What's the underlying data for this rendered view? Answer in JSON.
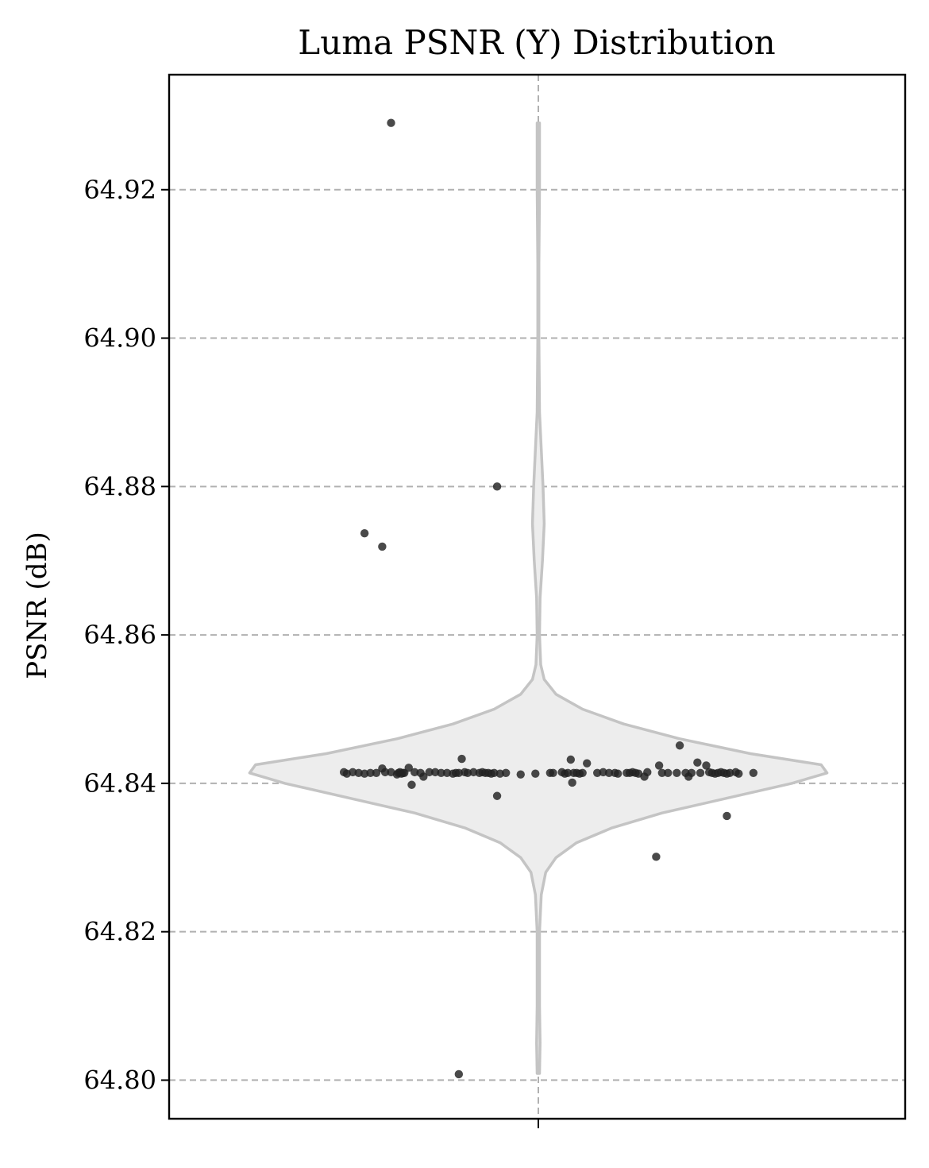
{
  "chart_data": {
    "type": "violin",
    "title": "Luma PSNR (Y) Distribution",
    "xlabel": "",
    "ylabel": "PSNR (dB)",
    "ylim": [
      64.7948,
      64.9355
    ],
    "yticks": [
      64.8,
      64.82,
      64.84,
      64.86,
      64.88,
      64.9,
      64.92
    ],
    "ytick_labels": [
      "64.80",
      "64.82",
      "64.84",
      "64.86",
      "64.88",
      "64.90",
      "64.92"
    ],
    "grid": true,
    "violin": {
      "min": 64.8009,
      "max": 64.929,
      "profile": [
        [
          64.8009,
          0.004
        ],
        [
          64.805,
          0.006
        ],
        [
          64.81,
          0.004
        ],
        [
          64.815,
          0.004
        ],
        [
          64.82,
          0.004
        ],
        [
          64.825,
          0.01
        ],
        [
          64.828,
          0.025
        ],
        [
          64.83,
          0.06
        ],
        [
          64.832,
          0.13
        ],
        [
          64.834,
          0.25
        ],
        [
          64.836,
          0.42
        ],
        [
          64.838,
          0.64
        ],
        [
          64.84,
          0.86
        ],
        [
          64.8414,
          0.98
        ],
        [
          64.8425,
          0.96
        ],
        [
          64.844,
          0.72
        ],
        [
          64.846,
          0.48
        ],
        [
          64.848,
          0.29
        ],
        [
          64.85,
          0.15
        ],
        [
          64.852,
          0.06
        ],
        [
          64.854,
          0.02
        ],
        [
          64.856,
          0.008
        ],
        [
          64.86,
          0.004
        ],
        [
          64.865,
          0.006
        ],
        [
          64.87,
          0.014
        ],
        [
          64.875,
          0.02
        ],
        [
          64.88,
          0.016
        ],
        [
          64.885,
          0.01
        ],
        [
          64.89,
          0.004
        ],
        [
          64.9,
          0.002
        ],
        [
          64.91,
          0.002
        ],
        [
          64.92,
          0.004
        ],
        [
          64.929,
          0.004
        ]
      ]
    },
    "points": [
      [
        -0.66,
        64.8415
      ],
      [
        -0.65,
        64.8413
      ],
      [
        -0.63,
        64.8415
      ],
      [
        -0.61,
        64.8414
      ],
      [
        -0.59,
        64.8413
      ],
      [
        -0.57,
        64.8414
      ],
      [
        -0.55,
        64.8414
      ],
      [
        -0.53,
        64.842
      ],
      [
        -0.52,
        64.8415
      ],
      [
        -0.5,
        64.8415
      ],
      [
        -0.48,
        64.8412
      ],
      [
        -0.475,
        64.8414
      ],
      [
        -0.47,
        64.8415
      ],
      [
        -0.465,
        64.8413
      ],
      [
        -0.46,
        64.8414
      ],
      [
        -0.455,
        64.8414
      ],
      [
        -0.44,
        64.8421
      ],
      [
        -0.43,
        64.8398
      ],
      [
        -0.42,
        64.8415
      ],
      [
        -0.4,
        64.8414
      ],
      [
        -0.39,
        64.8409
      ],
      [
        -0.37,
        64.8415
      ],
      [
        -0.35,
        64.8415
      ],
      [
        -0.33,
        64.8414
      ],
      [
        -0.31,
        64.8414
      ],
      [
        -0.29,
        64.8413
      ],
      [
        -0.28,
        64.8414
      ],
      [
        -0.27,
        64.8414
      ],
      [
        -0.26,
        64.8433
      ],
      [
        -0.25,
        64.8415
      ],
      [
        -0.24,
        64.8414
      ],
      [
        -0.22,
        64.8415
      ],
      [
        -0.2,
        64.8414
      ],
      [
        -0.19,
        64.8415
      ],
      [
        -0.18,
        64.8414
      ],
      [
        -0.17,
        64.8414
      ],
      [
        -0.16,
        64.8413
      ],
      [
        -0.15,
        64.8414
      ],
      [
        -0.14,
        64.8383
      ],
      [
        -0.13,
        64.8413
      ],
      [
        -0.11,
        64.8414
      ],
      [
        -0.06,
        64.8412
      ],
      [
        -0.01,
        64.8413
      ],
      [
        0.04,
        64.8414
      ],
      [
        0.05,
        64.8414
      ],
      [
        0.08,
        64.8415
      ],
      [
        0.09,
        64.8413
      ],
      [
        0.1,
        64.8414
      ],
      [
        0.11,
        64.8432
      ],
      [
        0.115,
        64.8401
      ],
      [
        0.12,
        64.8414
      ],
      [
        0.13,
        64.8414
      ],
      [
        0.14,
        64.8413
      ],
      [
        0.15,
        64.8414
      ],
      [
        0.165,
        64.8427
      ],
      [
        0.2,
        64.8414
      ],
      [
        0.22,
        64.8415
      ],
      [
        0.24,
        64.8414
      ],
      [
        0.26,
        64.8414
      ],
      [
        0.27,
        64.8413
      ],
      [
        0.3,
        64.8414
      ],
      [
        0.31,
        64.8414
      ],
      [
        0.32,
        64.8415
      ],
      [
        0.33,
        64.8414
      ],
      [
        0.34,
        64.8413
      ],
      [
        0.36,
        64.8409
      ],
      [
        0.37,
        64.8415
      ],
      [
        0.41,
        64.8424
      ],
      [
        0.42,
        64.8414
      ],
      [
        0.44,
        64.8414
      ],
      [
        0.47,
        64.8414
      ],
      [
        0.48,
        64.8451
      ],
      [
        0.5,
        64.8414
      ],
      [
        0.51,
        64.8409
      ],
      [
        0.52,
        64.8414
      ],
      [
        0.54,
        64.8428
      ],
      [
        0.55,
        64.8414
      ],
      [
        0.57,
        64.8424
      ],
      [
        0.58,
        64.8415
      ],
      [
        0.59,
        64.8414
      ],
      [
        0.6,
        64.8413
      ],
      [
        0.61,
        64.8414
      ],
      [
        0.62,
        64.8415
      ],
      [
        0.63,
        64.8414
      ],
      [
        0.64,
        64.8413
      ],
      [
        0.65,
        64.8414
      ],
      [
        0.67,
        64.8415
      ],
      [
        0.68,
        64.8413
      ],
      [
        0.73,
        64.8414
      ],
      [
        0.4,
        64.8301
      ],
      [
        0.64,
        64.8356
      ],
      [
        -0.5,
        64.929
      ],
      [
        -0.14,
        64.88
      ],
      [
        -0.59,
        64.8737
      ],
      [
        -0.53,
        64.8719
      ],
      [
        -0.27,
        64.8008
      ]
    ]
  }
}
